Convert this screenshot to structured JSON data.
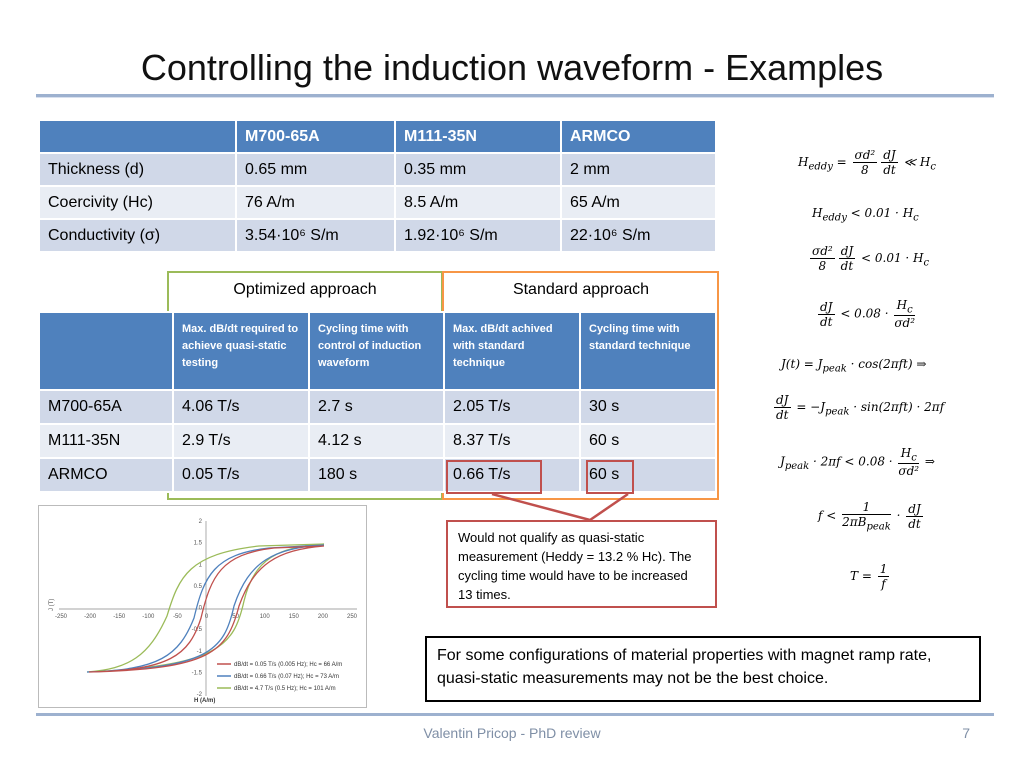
{
  "title": "Controlling the induction waveform - Examples",
  "table1": {
    "headers": [
      "",
      "M700-65A",
      "M111-35N",
      "ARMCO"
    ],
    "rows": [
      [
        "Thickness (d)",
        "0.65 mm",
        "0.35 mm",
        "2 mm"
      ],
      [
        "Coercivity (Hc)",
        "76 A/m",
        "8.5 A/m",
        "65 A/m"
      ],
      [
        "Conductivity (σ)",
        "3.54·10⁶ S/m",
        "1.92·10⁶ S/m",
        "22·10⁶ S/m"
      ]
    ]
  },
  "box_labels": {
    "optimized": "Optimized approach",
    "standard": "Standard approach"
  },
  "table2": {
    "headers": [
      "",
      "Max. dB/dt required to achieve quasi-static testing",
      "Cycling time with control of induction waveform",
      "Max. dB/dt achived with standard technique",
      "Cycling time with standard technique"
    ],
    "rows": [
      [
        "M700-65A",
        "4.06 T/s",
        "2.7 s",
        "2.05 T/s",
        "30 s"
      ],
      [
        "M111-35N",
        "2.9 T/s",
        "4.12 s",
        "8.37 T/s",
        "60 s"
      ],
      [
        "ARMCO",
        "0.05 T/s",
        "180 s",
        "0.66 T/s",
        "60 s"
      ]
    ]
  },
  "callout": "Would not qualify as quasi-static measurement (Heddy = 13.2 % Hc). The cycling time would have to be increased 13 times.",
  "conclusion": "For some configurations of material properties with magnet ramp rate, quasi-static measurements may not be the best choice.",
  "equations": [
    "Heddy = σd²/8 · dJ/dt ≪ Hc",
    "Heddy < 0.01 · Hc",
    "σd²/8 · dJ/dt < 0.01 · Hc",
    "dJ/dt < 0.08 · Hc/σd²",
    "J(t) = Jpeak · cos(2πft) ⇒",
    "dJ/dt = −Jpeak · sin(2πft) · 2πf",
    "Jpeak · 2πf < 0.08 · Hc/σd² ⇒",
    "f < 1/(2πBpeak) · dJ/dt",
    "T = 1/f"
  ],
  "graph": {
    "ylabel": "J (T)",
    "xlabel": "H (A/m)",
    "x_ticks": [
      "-250",
      "-200",
      "-150",
      "-100",
      "-50",
      "0",
      "50",
      "100",
      "150",
      "200",
      "250"
    ],
    "y_ticks": [
      "2",
      "1.5",
      "1",
      "0.5",
      "0",
      "-0.5",
      "-1",
      "-1.5",
      "-2"
    ],
    "legend": [
      {
        "label": "dB/dt = 0.05 T/s (0.005 Hz); Hc = 66 A/m",
        "color": "#c0504d"
      },
      {
        "label": "dB/dt = 0.66 T/s (0.07 Hz); Hc = 73 A/m",
        "color": "#4f81bd"
      },
      {
        "label": "dB/dt = 4.7 T/s (0.5 Hz); Hc = 101 A/m",
        "color": "#9bbb59"
      }
    ]
  },
  "footer": {
    "author": "Valentin Pricop - PhD review",
    "page": "7"
  }
}
